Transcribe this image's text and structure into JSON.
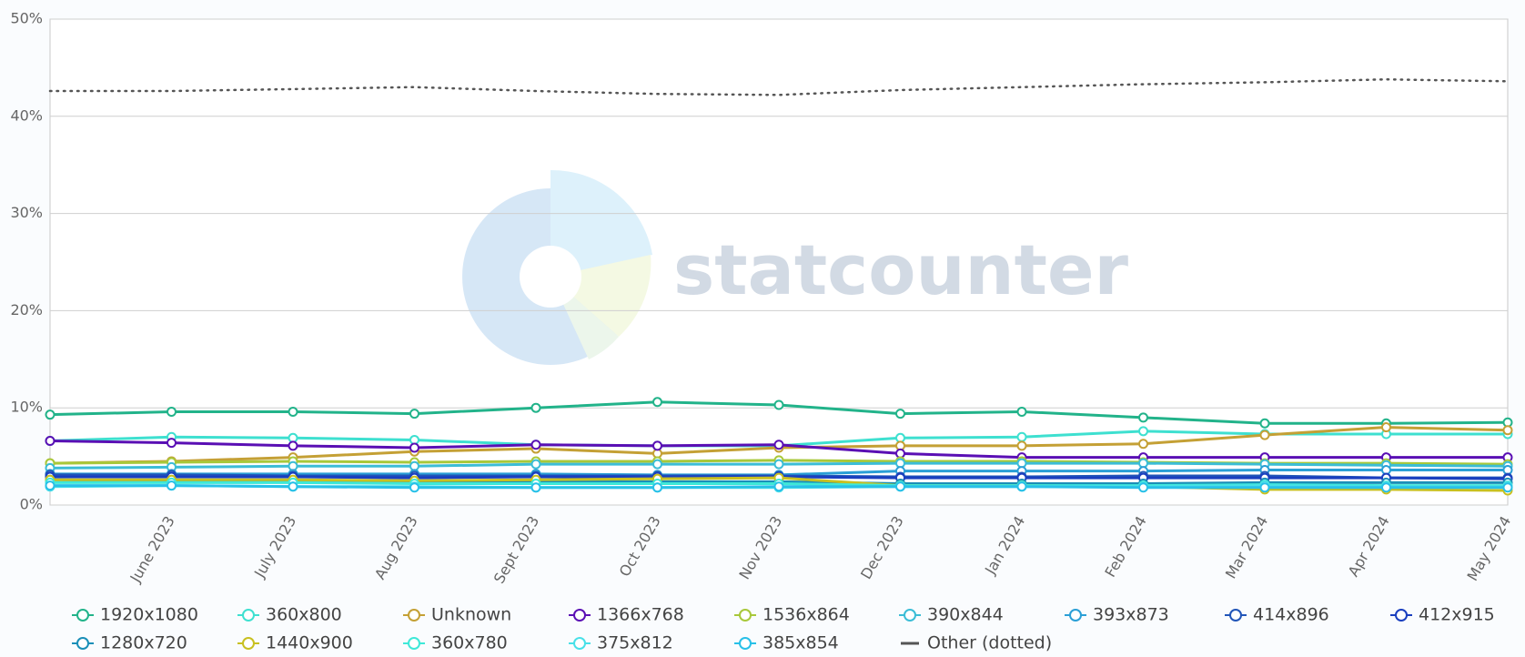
{
  "chart_data": {
    "type": "line",
    "watermark": "statcounter",
    "categories": [
      null,
      "June 2023",
      "July 2023",
      "Aug 2023",
      "Sept 2023",
      "Oct 2023",
      "Nov 2023",
      "Dec 2023",
      "Jan 2024",
      "Feb 2024",
      "Mar 2024",
      "Apr 2024",
      "May 2024"
    ],
    "ylim": [
      0,
      50
    ],
    "yticks": [
      {
        "value": 0,
        "label": "0%"
      },
      {
        "value": 10,
        "label": "10%"
      },
      {
        "value": 20,
        "label": "20%"
      },
      {
        "value": 30,
        "label": "30%"
      },
      {
        "value": 40,
        "label": "40%"
      },
      {
        "value": 50,
        "label": "50%"
      }
    ],
    "grid": true,
    "legend": "bottom",
    "series": [
      {
        "name": "1920x1080",
        "color": "#22b38a",
        "values": [
          9.3,
          9.6,
          9.6,
          9.4,
          10.0,
          10.6,
          10.3,
          9.4,
          9.6,
          9.0,
          8.4,
          8.4,
          8.5
        ]
      },
      {
        "name": "360x800",
        "color": "#3ee0d0",
        "values": [
          6.6,
          7.0,
          6.9,
          6.7,
          6.2,
          6.1,
          6.1,
          6.9,
          7.0,
          7.6,
          7.3,
          7.3,
          7.3
        ]
      },
      {
        "name": "Unknown",
        "color": "#c4a035",
        "values": [
          4.3,
          4.5,
          4.9,
          5.5,
          5.8,
          5.3,
          5.9,
          6.1,
          6.1,
          6.3,
          7.2,
          8.0,
          7.7
        ]
      },
      {
        "name": "1366x768",
        "color": "#5a0fb4",
        "values": [
          6.6,
          6.4,
          6.1,
          5.9,
          6.2,
          6.1,
          6.2,
          5.3,
          4.9,
          4.9,
          4.9,
          4.9,
          4.9
        ]
      },
      {
        "name": "1536x864",
        "color": "#a8c83a",
        "values": [
          4.3,
          4.4,
          4.5,
          4.4,
          4.5,
          4.5,
          4.6,
          4.5,
          4.5,
          4.4,
          4.3,
          4.3,
          4.2
        ]
      },
      {
        "name": "390x844",
        "color": "#3bbdd6",
        "values": [
          3.8,
          3.9,
          4.0,
          4.0,
          4.2,
          4.2,
          4.2,
          4.3,
          4.3,
          4.3,
          4.2,
          4.1,
          4.0
        ]
      },
      {
        "name": "393x873",
        "color": "#2a9fd6",
        "values": [
          3.2,
          3.2,
          3.2,
          3.2,
          3.2,
          3.1,
          3.1,
          3.5,
          3.5,
          3.5,
          3.6,
          3.6,
          3.6
        ]
      },
      {
        "name": "414x896",
        "color": "#2155b8",
        "values": [
          3.1,
          3.1,
          3.0,
          3.0,
          3.0,
          3.0,
          3.0,
          2.9,
          2.9,
          3.0,
          3.0,
          2.8,
          2.8
        ]
      },
      {
        "name": "412x915",
        "color": "#1a3fbf",
        "values": [
          2.9,
          2.9,
          2.9,
          2.8,
          2.9,
          2.9,
          2.9,
          2.8,
          2.8,
          2.8,
          2.8,
          2.8,
          2.7
        ]
      },
      {
        "name": "1280x720",
        "color": "#1a8fb8",
        "values": [
          2.6,
          2.5,
          2.5,
          2.4,
          2.4,
          2.4,
          2.4,
          2.2,
          2.2,
          2.2,
          2.3,
          2.3,
          2.3
        ]
      },
      {
        "name": "1440x900",
        "color": "#c8c020",
        "values": [
          2.6,
          2.6,
          2.6,
          2.5,
          2.6,
          2.7,
          2.8,
          2.0,
          2.0,
          1.9,
          1.6,
          1.6,
          1.5
        ]
      },
      {
        "name": "360x780",
        "color": "#3ee8d8",
        "values": [
          2.3,
          2.3,
          2.3,
          2.2,
          2.2,
          2.2,
          2.2,
          2.0,
          2.0,
          2.0,
          2.1,
          2.0,
          2.0
        ]
      },
      {
        "name": "375x812",
        "color": "#48e0e8",
        "values": [
          1.9,
          2.0,
          1.9,
          1.9,
          1.8,
          1.8,
          1.8,
          1.9,
          1.9,
          1.9,
          2.0,
          1.9,
          1.9
        ]
      },
      {
        "name": "385x854",
        "color": "#28c0e8",
        "values": [
          2.0,
          2.0,
          1.9,
          1.8,
          1.8,
          1.8,
          1.9,
          1.9,
          1.9,
          1.8,
          1.8,
          1.8,
          1.8
        ]
      },
      {
        "name": "Other (dotted)",
        "color": "#555555",
        "dotted": true,
        "values": [
          42.6,
          42.6,
          42.8,
          43.0,
          42.6,
          42.3,
          42.2,
          42.7,
          43.0,
          43.3,
          43.5,
          43.8,
          43.6
        ]
      }
    ]
  }
}
